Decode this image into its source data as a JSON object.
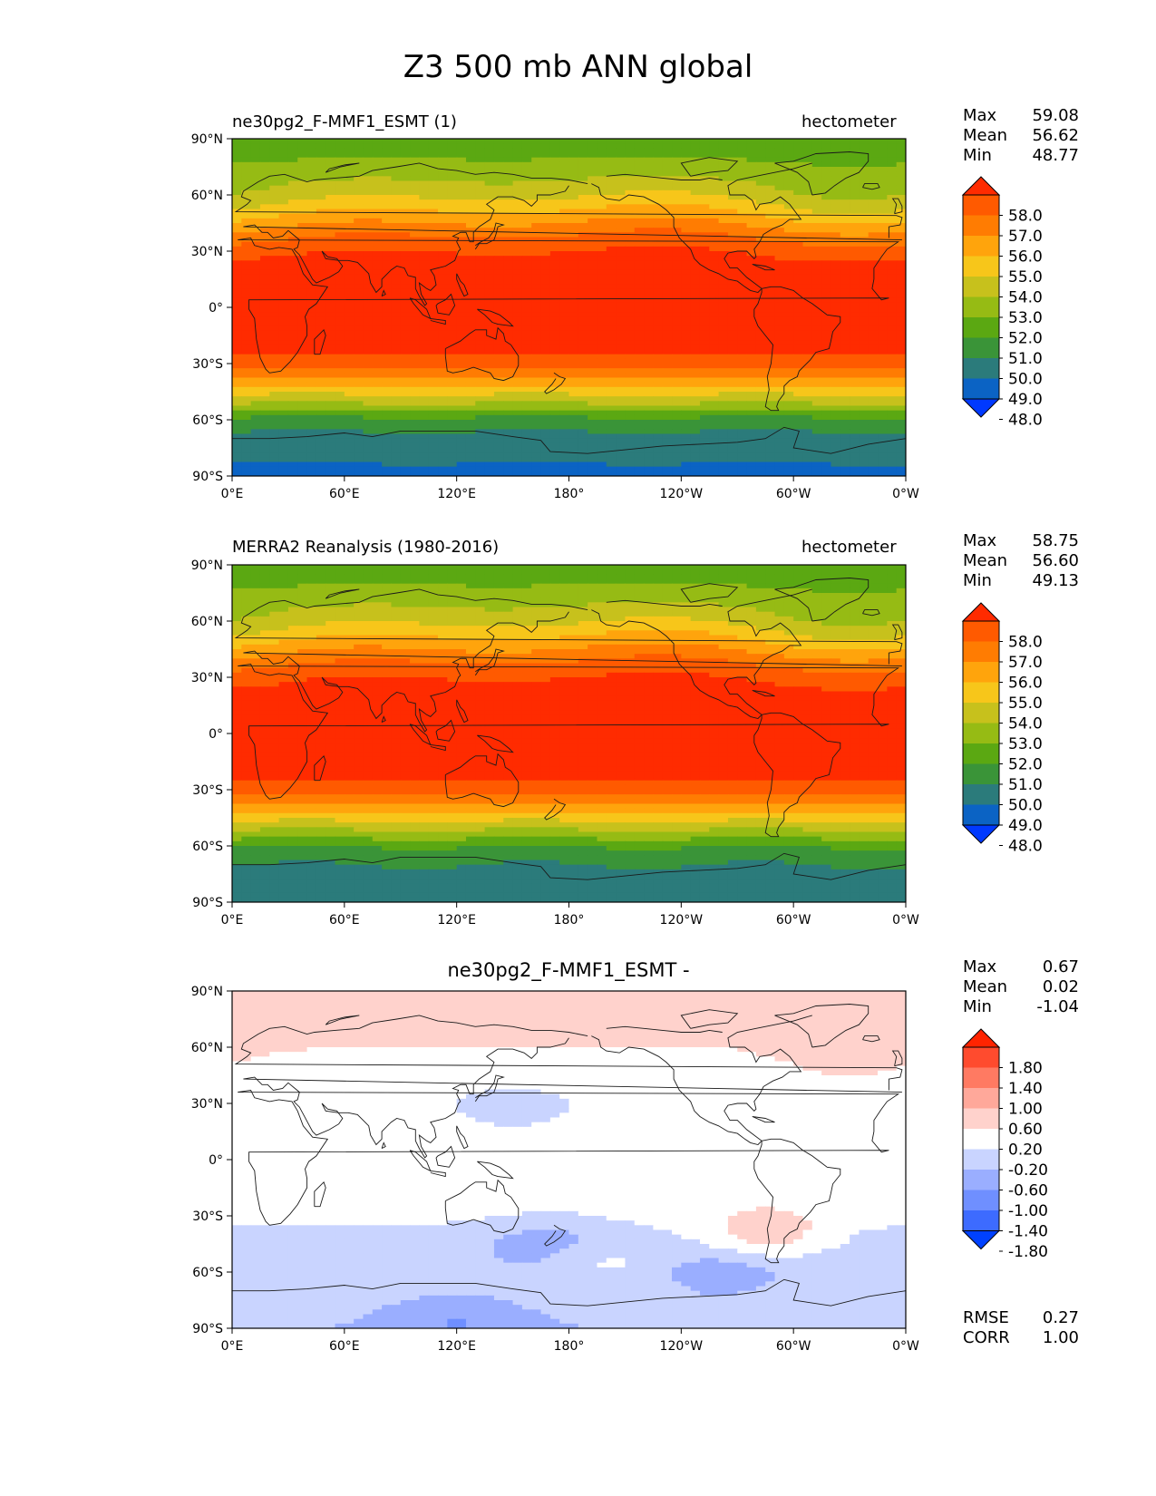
{
  "figure": {
    "title": "Z3 500 mb ANN global"
  },
  "panels": [
    {
      "id": "test",
      "title_left": "ne30pg2_F-MMF1_ESMT (1)",
      "title_center": "",
      "title_right": "hectometer",
      "stats": [
        {
          "label": "Max",
          "value": "59.08"
        },
        {
          "label": "Mean",
          "value": "56.62"
        },
        {
          "label": "Min",
          "value": "48.77"
        }
      ],
      "extra_stats": []
    },
    {
      "id": "reference",
      "title_left": "MERRA2 Reanalysis (1980-2016)",
      "title_center": "",
      "title_right": "hectometer",
      "stats": [
        {
          "label": "Max",
          "value": "58.75"
        },
        {
          "label": "Mean",
          "value": "56.60"
        },
        {
          "label": "Min",
          "value": "49.13"
        }
      ],
      "extra_stats": []
    },
    {
      "id": "difference",
      "title_left": "",
      "title_center": "ne30pg2_F-MMF1_ESMT -",
      "title_right": "",
      "stats": [
        {
          "label": "Max",
          "value": "0.67"
        },
        {
          "label": "Mean",
          "value": "0.02"
        },
        {
          "label": "Min",
          "value": "-1.04"
        }
      ],
      "extra_stats": [
        {
          "label": "RMSE",
          "value": "0.27"
        },
        {
          "label": "CORR",
          "value": "1.00"
        }
      ]
    }
  ],
  "axes": {
    "lat_ticks": [
      "90°N",
      "60°N",
      "30°N",
      "0°",
      "30°S",
      "60°S",
      "90°S"
    ],
    "lon_ticks": [
      "0°E",
      "60°E",
      "120°E",
      "180°",
      "120°W",
      "60°W",
      "0°W"
    ],
    "lat_range": [
      -90,
      90
    ],
    "lon_range": [
      0,
      360
    ]
  },
  "chart_data": [
    {
      "type": "heatmap",
      "panel": "test",
      "variable": "Z3",
      "units": "hectometer",
      "colorbar": {
        "levels": [
          48.0,
          49.0,
          50.0,
          51.0,
          52.0,
          53.0,
          54.0,
          55.0,
          56.0,
          57.0,
          58.0
        ],
        "labels": [
          "48.0",
          "49.0",
          "50.0",
          "51.0",
          "52.0",
          "53.0",
          "54.0",
          "55.0",
          "56.0",
          "57.0",
          "58.0"
        ],
        "colors": [
          "#0039ff",
          "#0b63c4",
          "#2b7b7b",
          "#3a9438",
          "#5ba812",
          "#96bb14",
          "#c7c11c",
          "#f7c61a",
          "#ffa40c",
          "#ff7c02",
          "#ff5a00",
          "#ff2b00"
        ],
        "extend": "both"
      },
      "zonal_mean_profile": {
        "lat": [
          -90,
          -80,
          -70,
          -60,
          -50,
          -40,
          -30,
          -20,
          -10,
          0,
          10,
          20,
          30,
          40,
          50,
          60,
          70,
          80,
          90
        ],
        "value": [
          48.8,
          49.1,
          49.6,
          50.7,
          53.3,
          55.5,
          57.6,
          58.5,
          58.7,
          58.7,
          58.7,
          58.5,
          57.9,
          56.6,
          55.0,
          53.6,
          52.7,
          51.9,
          51.6
        ]
      }
    },
    {
      "type": "heatmap",
      "panel": "reference",
      "variable": "Z3",
      "units": "hectometer",
      "colorbar": {
        "levels": [
          48.0,
          49.0,
          50.0,
          51.0,
          52.0,
          53.0,
          54.0,
          55.0,
          56.0,
          57.0,
          58.0
        ],
        "labels": [
          "48.0",
          "49.0",
          "50.0",
          "51.0",
          "52.0",
          "53.0",
          "54.0",
          "55.0",
          "56.0",
          "57.0",
          "58.0"
        ],
        "colors": [
          "#0039ff",
          "#0b63c4",
          "#2b7b7b",
          "#3a9438",
          "#5ba812",
          "#96bb14",
          "#c7c11c",
          "#f7c61a",
          "#ffa40c",
          "#ff7c02",
          "#ff5a00",
          "#ff2b00"
        ],
        "extend": "both"
      },
      "zonal_mean_profile": {
        "lat": [
          -90,
          -80,
          -70,
          -60,
          -50,
          -40,
          -30,
          -20,
          -10,
          0,
          10,
          20,
          30,
          40,
          50,
          60,
          70,
          80,
          90
        ],
        "value": [
          49.3,
          49.5,
          50.0,
          51.0,
          53.4,
          55.5,
          57.6,
          58.4,
          58.6,
          58.6,
          58.6,
          58.4,
          57.9,
          56.6,
          55.0,
          53.6,
          52.7,
          51.9,
          51.7
        ]
      }
    },
    {
      "type": "heatmap",
      "panel": "difference",
      "variable": "Z3",
      "colorbar": {
        "levels": [
          -1.8,
          -1.4,
          -1.0,
          -0.6,
          -0.2,
          0.2,
          0.6,
          1.0,
          1.4,
          1.8
        ],
        "labels": [
          "-1.80",
          "-1.40",
          "-1.00",
          "-0.60",
          "-0.20",
          "0.20",
          "0.60",
          "1.00",
          "1.40",
          "1.80"
        ],
        "colors": [
          "#0041ff",
          "#3d6bff",
          "#6f8fff",
          "#9aaeff",
          "#c9d4ff",
          "#ffffff",
          "#ffd2cc",
          "#ffa89a",
          "#ff7a62",
          "#ff4b2e",
          "#ff2400"
        ],
        "extend": "both"
      },
      "zonal_mean_profile": {
        "lat": [
          -90,
          -80,
          -70,
          -60,
          -50,
          -40,
          -30,
          -20,
          -10,
          0,
          10,
          20,
          30,
          40,
          50,
          60,
          70,
          80,
          90
        ],
        "value": [
          -0.6,
          -0.5,
          -0.4,
          -0.5,
          -0.4,
          -0.3,
          -0.1,
          0.0,
          0.0,
          0.0,
          0.0,
          0.0,
          0.0,
          0.1,
          0.1,
          0.2,
          0.3,
          0.3,
          0.3
        ]
      },
      "anomalies": [
        {
          "lon": 150,
          "lat": 30,
          "value": -0.4
        },
        {
          "lon": 170,
          "lat": -45,
          "value": -0.9
        },
        {
          "lon": 260,
          "lat": -60,
          "value": -0.9
        },
        {
          "lon": 120,
          "lat": -85,
          "value": -1.0
        },
        {
          "lon": 195,
          "lat": -55,
          "value": 0.0
        },
        {
          "lon": 330,
          "lat": 60,
          "value": 0.5
        },
        {
          "lon": 285,
          "lat": -40,
          "value": 0.4
        },
        {
          "lon": 45,
          "lat": 85,
          "value": 0.5
        }
      ]
    }
  ]
}
